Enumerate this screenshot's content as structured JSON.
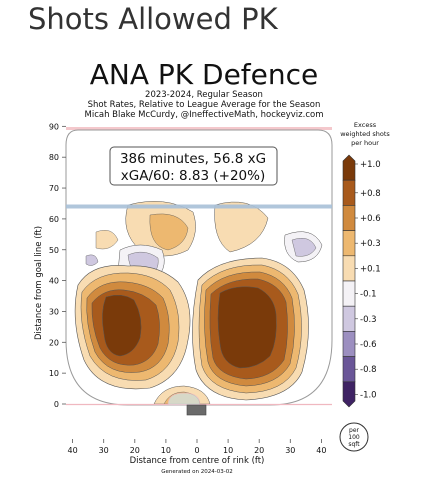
{
  "page_title": "Shots Allowed PK",
  "chart_data": {
    "type": "heatmap",
    "title": "ANA PK Defence",
    "subtitle_lines": [
      "2023-2024, Regular Season",
      "Shot Rates, Relative to League Average for the Season",
      "Micah Blake McCurdy, @IneffectiveMath, hockeyviz.com"
    ],
    "summary_lines": [
      "386 minutes, 56.8 xG",
      "xGA/60: 8.83 (+20%)"
    ],
    "minutes": 386,
    "xg": 56.8,
    "xga60": 8.83,
    "relative_pct": 20,
    "xlabel": "Distance from centre of rink (ft)",
    "ylabel": "Distance from goal line (ft)",
    "xlim": [
      -42,
      42
    ],
    "ylim": [
      -11,
      90
    ],
    "x_ticks": [
      "40",
      "30",
      "20",
      "10",
      "0",
      "10",
      "20",
      "30",
      "40"
    ],
    "x_tick_values": [
      -40,
      -30,
      -20,
      -10,
      0,
      10,
      20,
      30,
      40
    ],
    "y_ticks": [
      "0",
      "10",
      "20",
      "30",
      "40",
      "50",
      "60",
      "70",
      "80",
      "90"
    ],
    "y_tick_values": [
      0,
      10,
      20,
      30,
      40,
      50,
      60,
      70,
      80,
      90
    ],
    "blue_line_ft": 64,
    "footer": "Generated on 2024-03-02",
    "colorbar": {
      "title_lines": [
        "Excess",
        "weighted shots",
        "per hour"
      ],
      "tick_labels": [
        "+1.0",
        "+0.8",
        "+0.6",
        "+0.3",
        "+0.1",
        "-0.1",
        "-0.3",
        "-0.6",
        "-0.8",
        "-1.0"
      ],
      "levels": [
        1.0,
        0.8,
        0.6,
        0.3,
        0.1,
        -0.1,
        -0.3,
        -0.6,
        -0.8,
        -1.0
      ],
      "colors": [
        "#7a3a0a",
        "#a85a1c",
        "#d08a3e",
        "#edb870",
        "#f8dcb2",
        "#f4f2f6",
        "#cfc8e0",
        "#9c8fc0",
        "#6a5698",
        "#3f2364"
      ]
    },
    "unit_badge_lines": [
      "per",
      "100",
      "sqft"
    ],
    "regions": [
      {
        "label": "left-slot-hot",
        "cx": -22,
        "cy": 25,
        "levels": [
          0.1,
          0.3,
          0.6,
          0.8,
          1.0
        ]
      },
      {
        "label": "right-slot-hot",
        "cx": 15,
        "cy": 23,
        "levels": [
          0.1,
          0.3,
          0.6,
          0.8,
          1.0
        ]
      },
      {
        "label": "high-slot-warm",
        "cx": -11,
        "cy": 60,
        "levels": [
          0.1,
          0.3
        ]
      },
      {
        "label": "crease-warm",
        "cx": -8,
        "cy": 2,
        "levels": [
          0.1,
          0.3
        ]
      },
      {
        "label": "left-point-cold",
        "cx": -14,
        "cy": 47,
        "levels": [
          -0.1,
          -0.3
        ]
      },
      {
        "label": "right-point-cold",
        "cx": 33,
        "cy": 52,
        "levels": [
          -0.1,
          -0.3
        ]
      },
      {
        "label": "left-circle-cold",
        "cx": -35,
        "cy": 47,
        "levels": [
          -0.1
        ]
      }
    ]
  }
}
